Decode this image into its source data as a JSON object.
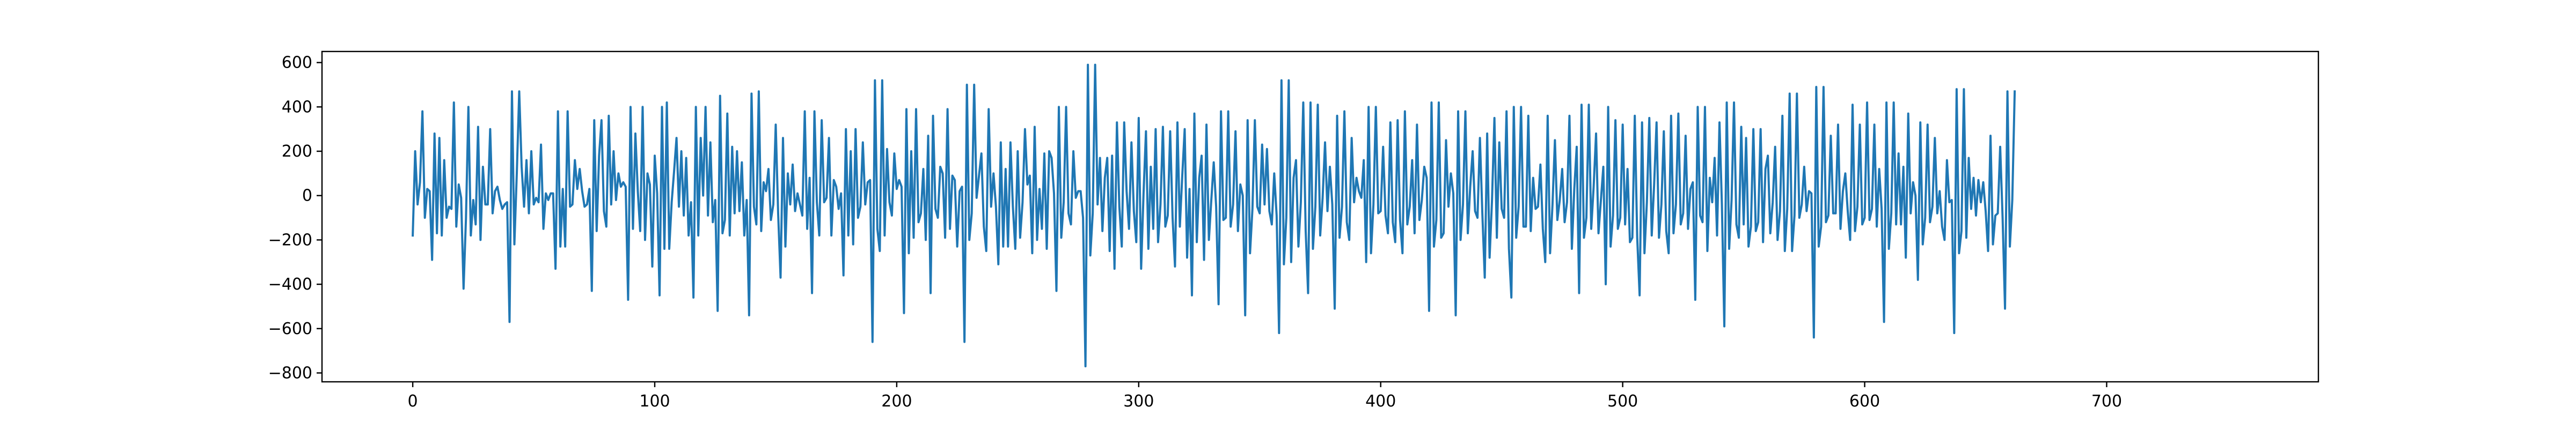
{
  "chart_data": {
    "type": "line",
    "title": "",
    "xlabel": "",
    "ylabel": "",
    "xlim": [
      -37.5,
      787.5
    ],
    "ylim": [
      -840,
      650
    ],
    "x_ticks": [
      0,
      100,
      200,
      300,
      400,
      500,
      600,
      700
    ],
    "y_ticks": [
      -800,
      -600,
      -400,
      -200,
      0,
      200,
      400,
      600
    ],
    "x_tick_labels": [
      "0",
      "100",
      "200",
      "300",
      "400",
      "500",
      "600",
      "700"
    ],
    "y_tick_labels": [
      "−800",
      "−600",
      "−400",
      "−200",
      "0",
      "200",
      "400",
      "600"
    ],
    "grid": false,
    "legend": "none",
    "x_start": 0,
    "x_step": 1,
    "series": [
      {
        "color": "#1f77b4",
        "values": [
          -180,
          200,
          -40,
          60,
          380,
          -100,
          30,
          20,
          -290,
          280,
          -170,
          260,
          -180,
          160,
          -100,
          -50,
          -60,
          420,
          -140,
          50,
          -10,
          -420,
          -100,
          400,
          -180,
          -20,
          -130,
          310,
          -200,
          130,
          -40,
          -40,
          300,
          -80,
          20,
          40,
          -20,
          -60,
          -40,
          -30,
          -570,
          470,
          -220,
          100,
          470,
          130,
          -50,
          160,
          -80,
          200,
          -40,
          -10,
          -30,
          230,
          -150,
          10,
          -20,
          10,
          10,
          -330,
          380,
          -230,
          30,
          -230,
          380,
          -50,
          -40,
          160,
          30,
          120,
          20,
          -50,
          -40,
          30,
          -430,
          340,
          -160,
          180,
          340,
          -70,
          -140,
          360,
          -40,
          200,
          -20,
          100,
          40,
          60,
          40,
          -470,
          400,
          -150,
          280,
          20,
          -160,
          400,
          -200,
          100,
          50,
          -320,
          180,
          10,
          -450,
          400,
          -240,
          420,
          -240,
          -30,
          110,
          260,
          -50,
          200,
          -90,
          170,
          -180,
          -30,
          -460,
          400,
          -180,
          260,
          0,
          400,
          -90,
          240,
          -120,
          -20,
          -520,
          450,
          -170,
          -110,
          370,
          -180,
          220,
          -80,
          200,
          -70,
          150,
          -180,
          -20,
          -540,
          460,
          -50,
          -130,
          470,
          -160,
          60,
          20,
          120,
          -110,
          -40,
          320,
          -80,
          -370,
          260,
          -230,
          100,
          -40,
          140,
          -70,
          10,
          -40,
          -90,
          380,
          -150,
          80,
          -440,
          380,
          -30,
          -180,
          340,
          -30,
          -10,
          260,
          -180,
          70,
          40,
          -60,
          10,
          -360,
          300,
          -180,
          200,
          -220,
          300,
          -100,
          -50,
          240,
          -40,
          60,
          70,
          -660,
          520,
          -150,
          -250,
          520,
          -180,
          210,
          -30,
          -90,
          190,
          30,
          70,
          40,
          -530,
          390,
          -260,
          200,
          -190,
          390,
          -120,
          -80,
          120,
          -200,
          270,
          -440,
          360,
          -60,
          -100,
          130,
          100,
          -190,
          390,
          -150,
          90,
          70,
          -230,
          20,
          40,
          -660,
          500,
          -200,
          -80,
          500,
          -10,
          90,
          190,
          -140,
          -250,
          390,
          -50,
          100,
          -50,
          -310,
          240,
          -230,
          120,
          -230,
          240,
          -50,
          -240,
          200,
          -190,
          -30,
          300,
          50,
          90,
          -260,
          310,
          -200,
          30,
          -150,
          190,
          -240,
          200,
          170,
          10,
          -430,
          400,
          -190,
          -30,
          400,
          -80,
          -130,
          200,
          -10,
          20,
          20,
          -100,
          -770,
          590,
          -270,
          -80,
          590,
          -40,
          170,
          -160,
          80,
          170,
          -250,
          180,
          -330,
          330,
          -50,
          -230,
          330,
          20,
          -150,
          240,
          -70,
          -210,
          350,
          -330,
          10,
          290,
          -240,
          130,
          -150,
          300,
          -210,
          -40,
          310,
          -140,
          -90,
          290,
          -100,
          -320,
          330,
          -140,
          90,
          300,
          -280,
          30,
          -450,
          370,
          -210,
          80,
          180,
          -290,
          320,
          -200,
          -20,
          150,
          -50,
          -490,
          380,
          -110,
          -100,
          380,
          -140,
          -40,
          290,
          -160,
          50,
          0,
          -540,
          340,
          -260,
          -60,
          340,
          -50,
          -80,
          230,
          -40,
          210,
          -70,
          -130,
          100,
          -90,
          -620,
          520,
          -310,
          -100,
          520,
          -300,
          80,
          160,
          -230,
          -30,
          420,
          -160,
          -440,
          420,
          -240,
          -50,
          410,
          -180,
          -10,
          240,
          -70,
          130,
          -40,
          -510,
          360,
          -190,
          -50,
          380,
          -120,
          -200,
          260,
          -30,
          80,
          20,
          -10,
          160,
          -300,
          400,
          -260,
          -40,
          400,
          -80,
          -70,
          220,
          -90,
          -170,
          330,
          -120,
          -210,
          340,
          -110,
          -260,
          380,
          -130,
          -50,
          160,
          -170,
          320,
          -110,
          -20,
          130,
          80,
          -520,
          420,
          -230,
          -110,
          420,
          -190,
          -170,
          250,
          -50,
          100,
          10,
          -540,
          380,
          -200,
          -40,
          380,
          -170,
          40,
          200,
          -70,
          -100,
          260,
          -80,
          -370,
          280,
          -280,
          -20,
          350,
          -190,
          240,
          -60,
          -100,
          380,
          -240,
          -460,
          400,
          -190,
          -50,
          400,
          -140,
          -140,
          360,
          -160,
          80,
          -60,
          -50,
          140,
          -150,
          -300,
          360,
          -260,
          -40,
          250,
          -110,
          -20,
          120,
          -120,
          -30,
          360,
          -240,
          30,
          220,
          -440,
          410,
          -190,
          -100,
          410,
          -150,
          40,
          280,
          -170,
          -20,
          130,
          -400,
          400,
          -230,
          -90,
          340,
          -150,
          -100,
          320,
          -130,
          120,
          -210,
          -190,
          360,
          -190,
          -450,
          330,
          -260,
          -30,
          350,
          -180,
          50,
          330,
          -190,
          -40,
          290,
          -160,
          -260,
          360,
          -170,
          -40,
          370,
          -130,
          -80,
          270,
          -150,
          30,
          60,
          -470,
          400,
          -90,
          -120,
          400,
          -250,
          80,
          -30,
          170,
          -180,
          330,
          -40,
          -590,
          420,
          -240,
          -20,
          420,
          -130,
          -190,
          310,
          -130,
          260,
          -230,
          -140,
          300,
          -160,
          -120,
          300,
          -210,
          120,
          180,
          -170,
          -30,
          220,
          -200,
          -70,
          360,
          -250,
          -60,
          460,
          -250,
          -90,
          460,
          -100,
          -40,
          130,
          -70,
          20,
          10,
          -640,
          490,
          -230,
          -140,
          490,
          -120,
          -90,
          270,
          -80,
          -80,
          320,
          -150,
          20,
          100,
          -70,
          -200,
          410,
          -160,
          -50,
          320,
          -130,
          -100,
          420,
          -110,
          -60,
          320,
          -140,
          120,
          -60,
          -570,
          420,
          -240,
          -80,
          420,
          -130,
          190,
          -130,
          130,
          -280,
          370,
          -80,
          60,
          0,
          -380,
          330,
          -220,
          -100,
          320,
          -120,
          -50,
          260,
          -80,
          20,
          -140,
          -200,
          160,
          -30,
          -20,
          -620,
          480,
          -260,
          -160,
          480,
          -190,
          170,
          -60,
          80,
          -90,
          70,
          -30,
          60,
          -70,
          -250,
          270,
          -220,
          -90,
          -80,
          220,
          -100,
          -510,
          470,
          -230,
          -20,
          470
        ]
      }
    ]
  }
}
